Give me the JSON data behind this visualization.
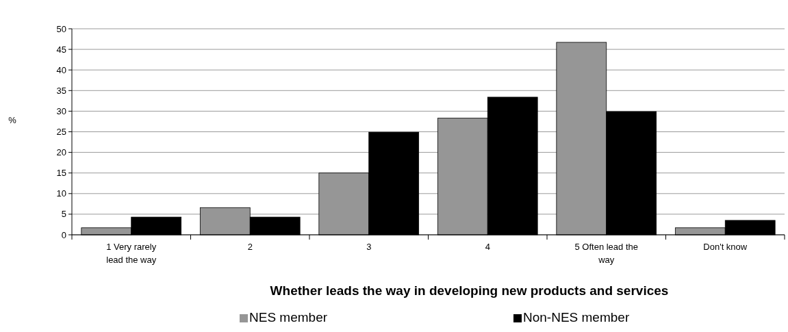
{
  "chart_data": {
    "type": "bar",
    "xlabel": "Whether leads the way in developing new products and services",
    "ylabel": "%",
    "categories": [
      "1 Very rarely lead the way",
      "2",
      "3",
      "4",
      "5 Often lead the way",
      "Don't know"
    ],
    "series": [
      {
        "name": "NES member",
        "color": "#969696",
        "values": [
          1.7,
          6.6,
          15.0,
          28.3,
          46.7,
          1.7
        ]
      },
      {
        "name": "Non-NES member",
        "color": "#000000",
        "values": [
          4.3,
          4.3,
          24.9,
          33.4,
          29.9,
          3.5
        ]
      }
    ],
    "ylim": [
      0,
      50
    ],
    "yticks": [
      0,
      5,
      10,
      15,
      20,
      25,
      30,
      35,
      40,
      45,
      50
    ],
    "grid": "y",
    "legend": "bottom"
  }
}
